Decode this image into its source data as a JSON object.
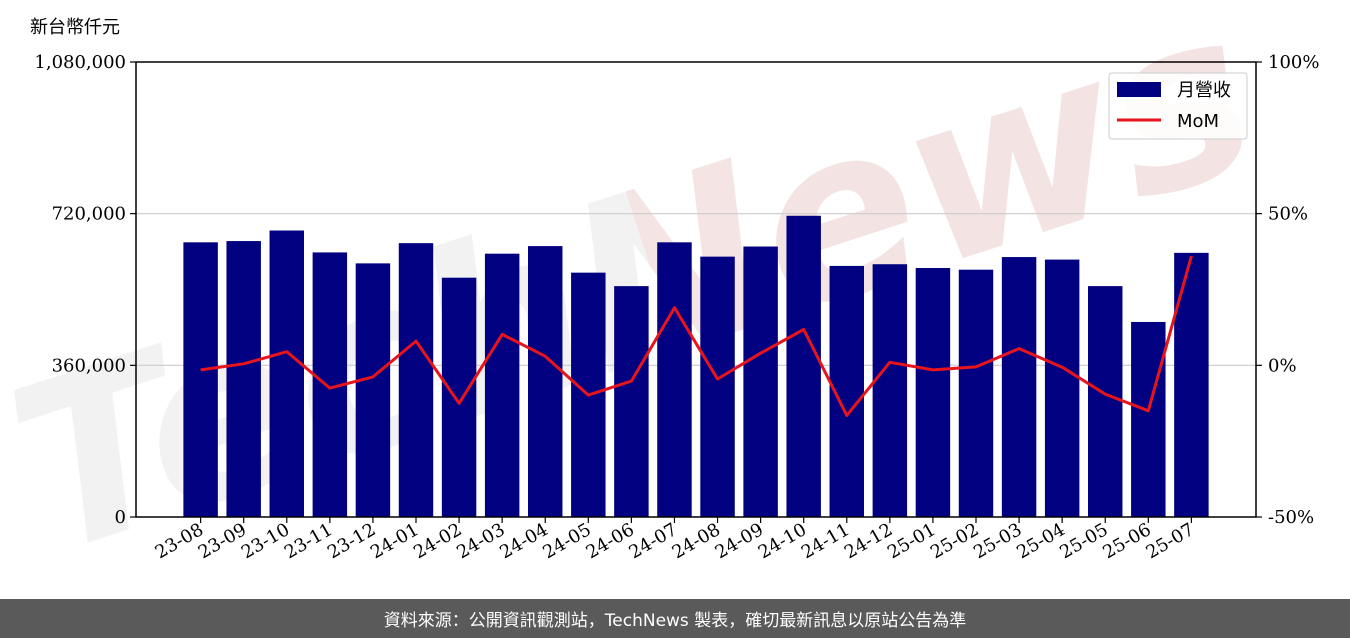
{
  "chart_data": {
    "type": "bar",
    "unit_label": "新台幣仟元",
    "categories": [
      "23-08",
      "23-09",
      "23-10",
      "23-11",
      "23-12",
      "24-01",
      "24-02",
      "24-03",
      "24-04",
      "24-05",
      "24-06",
      "24-07",
      "24-08",
      "24-09",
      "24-10",
      "24-11",
      "24-12",
      "25-01",
      "25-02",
      "25-03",
      "25-04",
      "25-05",
      "25-06",
      "25-07"
    ],
    "series": [
      {
        "name": "月營收",
        "type": "bar",
        "axis": "left",
        "color": "#000080",
        "values": [
          652000,
          655000,
          680000,
          628000,
          602000,
          650000,
          568000,
          625000,
          643000,
          580000,
          548000,
          652000,
          618000,
          642000,
          715000,
          596000,
          600000,
          591000,
          587000,
          617000,
          611000,
          548000,
          463000,
          627000
        ]
      },
      {
        "name": "MoM",
        "type": "line",
        "axis": "right",
        "color": "#e8141c",
        "values": [
          -1.5,
          0.5,
          4.5,
          -7.5,
          -3.8,
          8.0,
          -12.5,
          10.2,
          3.0,
          -9.8,
          -5.2,
          19.0,
          -4.5,
          4.0,
          11.8,
          -16.5,
          1.0,
          -1.5,
          -0.5,
          5.5,
          -0.6,
          -9.5,
          -15.0,
          36.0
        ]
      }
    ],
    "y_left": {
      "min": 0,
      "max": 1080000,
      "ticks": [
        0,
        360000,
        720000,
        1080000
      ],
      "tick_labels": [
        "0",
        "360,000",
        "720,000",
        "1,080,000"
      ]
    },
    "y_right": {
      "min": -50,
      "max": 100,
      "ticks": [
        -50,
        0,
        50,
        100
      ],
      "tick_labels": [
        "-50%",
        "0%",
        "50%",
        "100%"
      ]
    },
    "grid": "horizontal",
    "legend_position": "top-right",
    "watermark": "TechNews"
  },
  "footer": {
    "source_text": "資料來源：公開資訊觀測站，TechNews 製表，確切最新訊息以原站公告為準"
  }
}
